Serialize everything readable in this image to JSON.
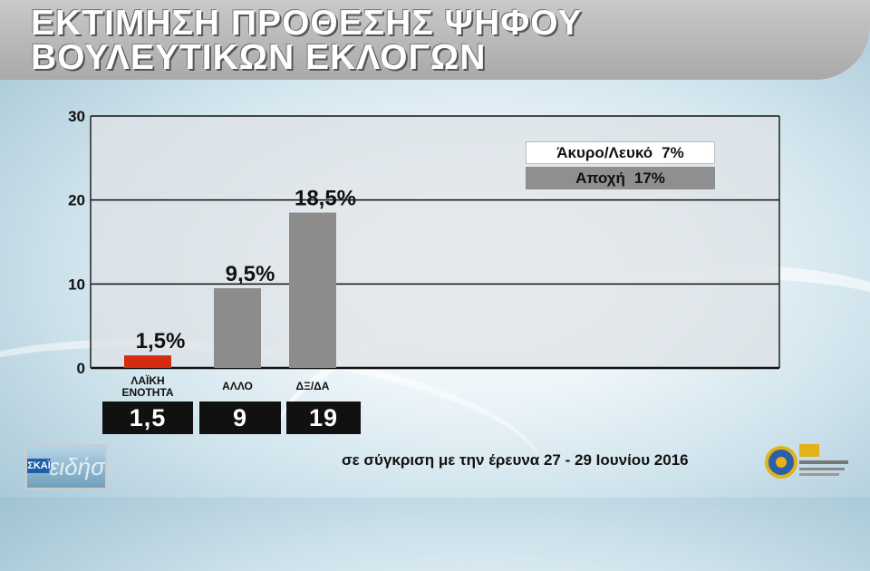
{
  "title_line1": "ΕΚΤΙΜΗΣΗ ΠΡΟΘΕΣΗΣ ΨΗΦΟΥ",
  "title_line2": "ΒΟΥΛΕΥΤΙΚΩΝ ΕΚΛΟΓΩΝ",
  "legend": [
    {
      "label": "Άκυρο/Λευκό",
      "value": "7%"
    },
    {
      "label": "Αποχή",
      "value": "17%"
    }
  ],
  "footer_note": "σε σύγκριση με την έρευνα 27 - 29 Ιουνίου 2016",
  "logo_left_badge": "ΣΚΑΪ",
  "colors": {
    "bar_highlight": "#d62b10",
    "bar_default": "#8c8c8c",
    "value_box": "#111111"
  },
  "chart_data": {
    "type": "bar",
    "categories": [
      "ΛΑΪΚΗ ΕΝΟΤΗΤΑ",
      "ΑΛΛΟ",
      "ΔΞ/ΔΑ"
    ],
    "category_lines": [
      [
        "ΛΑΪΚΗ",
        "ΕΝΟΤΗΤΑ"
      ],
      [
        "ΑΛΛΟ"
      ],
      [
        "ΔΞ/ΔΑ"
      ]
    ],
    "values": [
      1.5,
      9.5,
      18.5
    ],
    "value_labels": [
      "1,5%",
      "9,5%",
      "18,5%"
    ],
    "comparison_values": [
      "1,5",
      "9",
      "19"
    ],
    "bar_colors": [
      "#d62b10",
      "#8c8c8c",
      "#8c8c8c"
    ],
    "ylim": [
      0,
      30
    ],
    "yticks": [
      0,
      10,
      20,
      30
    ],
    "grid": true
  }
}
